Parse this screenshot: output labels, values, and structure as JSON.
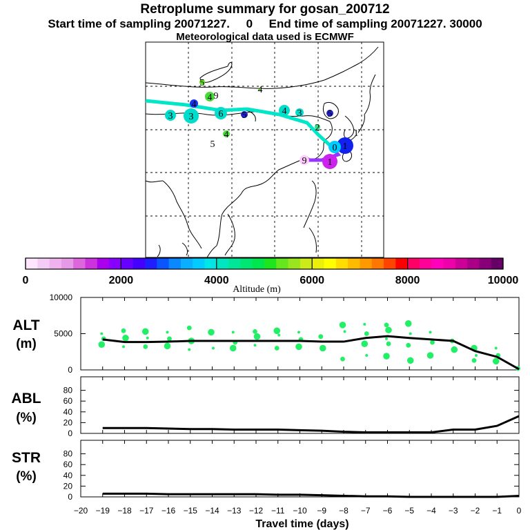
{
  "header": {
    "title": "Retroplume summary for gosan_200712",
    "start_label": "Start time of sampling 20071227.",
    "start_value": "0",
    "end_label": "End time of sampling 20071227. 30000",
    "meteo": "Meteorological data used is ECMWF"
  },
  "colorbar": {
    "title": "Altitude (m)",
    "ticks": [
      "0",
      "2000",
      "4000",
      "6000",
      "8000",
      "10000"
    ],
    "colors": [
      "#ffe6ff",
      "#f5ccf5",
      "#eeb2ee",
      "#e699e6",
      "#dd66dd",
      "#cc33dd",
      "#aa00ee",
      "#8800ff",
      "#6600ff",
      "#4400ff",
      "#1e1eff",
      "#0a55ff",
      "#0a88ff",
      "#0ab0ff",
      "#00ccff",
      "#00e5e5",
      "#00e6c0",
      "#00e699",
      "#00e673",
      "#00e64d",
      "#1ee61e",
      "#66e61e",
      "#99e61e",
      "#ccec1a",
      "#eaf00a",
      "#ffff00",
      "#ffdd00",
      "#ffbb00",
      "#ff9900",
      "#ff7700",
      "#ff4400",
      "#ff0000",
      "#ff0066",
      "#ff0099",
      "#ff00bb",
      "#ee00aa",
      "#cc0099",
      "#aa0088",
      "#880077",
      "#660066"
    ]
  },
  "map": {
    "plume_labels": [
      "5",
      "4",
      "9",
      "4",
      "4",
      "3",
      "3",
      "6",
      "5",
      "4",
      "3",
      "5",
      "4",
      "5",
      "1",
      "0",
      "1",
      "9",
      "2",
      "1"
    ]
  },
  "chart_data": [
    {
      "type": "line",
      "name": "ALT",
      "ylabel": "ALT",
      "yunit": "(m)",
      "ylim": [
        0,
        10000
      ],
      "yticks": [
        "10000",
        "5000",
        "0"
      ],
      "x": [
        -19,
        -18,
        -17,
        -16,
        -15,
        -14,
        -13,
        -12,
        -11,
        -10,
        -9,
        -8,
        -7,
        -6,
        -5,
        -4,
        -3,
        -2,
        -1,
        0
      ],
      "values": [
        4200,
        3850,
        3850,
        3900,
        4000,
        4000,
        4000,
        4000,
        4000,
        4000,
        3900,
        3900,
        4400,
        4650,
        4400,
        4200,
        4000,
        2600,
        1800,
        100
      ],
      "clusters": [
        [
          5000,
          4300,
          3500
        ],
        [
          5400,
          4400,
          3200
        ],
        [
          5300,
          4400,
          3200
        ],
        [
          5200,
          4300,
          3300
        ],
        [
          5800,
          4000,
          2800
        ],
        [
          5200,
          3000
        ],
        [
          5200,
          3800,
          3000
        ],
        [
          5300,
          4600,
          3400
        ],
        [
          5400,
          4800,
          3000
        ],
        [
          5200,
          4200,
          3200
        ],
        [
          4600,
          3000
        ],
        [
          6200,
          5300,
          1500
        ],
        [
          6300,
          5000,
          3600,
          2000
        ],
        [
          6200,
          5500,
          4300,
          3600,
          1900
        ],
        [
          6400,
          5000,
          3400,
          1300
        ],
        [
          5200,
          3800,
          2000
        ],
        [
          4000,
          2800
        ],
        [
          3000,
          2000,
          1300
        ],
        [
          3000,
          2000,
          1200
        ],
        [
          200
        ]
      ]
    },
    {
      "type": "line",
      "name": "ABL",
      "ylabel": "ABL",
      "yunit": "(%)",
      "ylim": [
        0,
        100
      ],
      "yticks": [
        "80",
        "60",
        "40",
        "20",
        "0"
      ],
      "x": [
        -19,
        -18,
        -17,
        -16,
        -15,
        -14,
        -13,
        -12,
        -11,
        -10,
        -9,
        -8,
        -7,
        -6,
        -5,
        -4,
        -3,
        -2,
        -1,
        0
      ],
      "values": [
        10,
        10,
        10,
        9,
        8,
        8,
        7,
        7,
        7,
        6,
        5,
        3,
        2,
        2,
        2,
        2,
        7,
        7,
        14,
        32
      ]
    },
    {
      "type": "line",
      "name": "STR",
      "ylabel": "STR",
      "yunit": "(%)",
      "ylim": [
        0,
        100
      ],
      "yticks": [
        "80",
        "60",
        "40",
        "20",
        "0"
      ],
      "x": [
        -19,
        -18,
        -17,
        -16,
        -15,
        -14,
        -13,
        -12,
        -11,
        -10,
        -9,
        -8,
        -7,
        -6,
        -5,
        -4,
        -3,
        -2,
        -1,
        0
      ],
      "values": [
        6,
        6,
        6,
        5,
        5,
        5,
        5,
        5,
        4,
        4,
        3,
        2,
        1,
        1,
        0,
        0,
        0,
        0,
        0,
        2
      ],
      "xlabel": "Travel time (days)",
      "xtick_labels": [
        "−20",
        "−19",
        "−18",
        "−17",
        "−16",
        "−15",
        "−14",
        "−13",
        "−12",
        "−11",
        "−10",
        "−9",
        "−8",
        "−7",
        "−6",
        "−5",
        "−4",
        "−3",
        "−2",
        "−1",
        "0"
      ]
    }
  ],
  "colors": {
    "line": "#000000",
    "cluster": "#22ee66"
  }
}
